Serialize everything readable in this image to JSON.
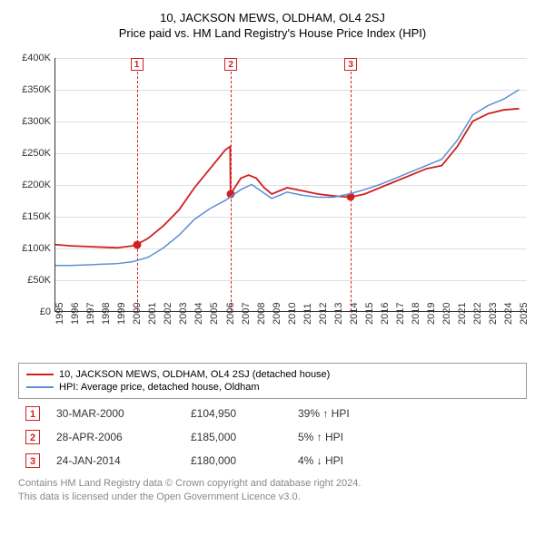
{
  "title": "10, JACKSON MEWS, OLDHAM, OL4 2SJ",
  "subtitle": "Price paid vs. HM Land Registry's House Price Index (HPI)",
  "chart": {
    "type": "line",
    "xlim": [
      1995,
      2025.5
    ],
    "ylim": [
      0,
      400000
    ],
    "ytick_step": 50000,
    "ytick_labels": [
      "£0",
      "£50K",
      "£100K",
      "£150K",
      "£200K",
      "£250K",
      "£300K",
      "£350K",
      "£400K"
    ],
    "xticks": [
      1995,
      1996,
      1997,
      1998,
      1999,
      2000,
      2001,
      2002,
      2003,
      2004,
      2005,
      2006,
      2007,
      2008,
      2009,
      2010,
      2011,
      2012,
      2013,
      2014,
      2015,
      2016,
      2017,
      2018,
      2019,
      2020,
      2021,
      2022,
      2023,
      2024,
      2025
    ],
    "background_color": "#ffffff",
    "grid_color": "#e0e0e0",
    "axis_color": "#333333",
    "label_fontsize": 11,
    "series": [
      {
        "name": "10, JACKSON MEWS, OLDHAM, OL4 2SJ (detached house)",
        "color": "#d02020",
        "width": 1.8,
        "points": [
          [
            1995,
            105000
          ],
          [
            1996,
            103000
          ],
          [
            1997,
            102000
          ],
          [
            1998,
            101000
          ],
          [
            1999,
            100000
          ],
          [
            2000,
            103000
          ],
          [
            2000.25,
            104950
          ],
          [
            2001,
            115000
          ],
          [
            2002,
            135000
          ],
          [
            2003,
            160000
          ],
          [
            2004,
            195000
          ],
          [
            2005,
            225000
          ],
          [
            2006,
            255000
          ],
          [
            2006.3,
            260000
          ],
          [
            2006.33,
            185000
          ],
          [
            2007,
            210000
          ],
          [
            2007.5,
            215000
          ],
          [
            2008,
            210000
          ],
          [
            2008.5,
            195000
          ],
          [
            2009,
            185000
          ],
          [
            2010,
            195000
          ],
          [
            2011,
            190000
          ],
          [
            2012,
            185000
          ],
          [
            2013,
            182000
          ],
          [
            2014,
            180000
          ],
          [
            2014.07,
            180000
          ],
          [
            2015,
            185000
          ],
          [
            2016,
            195000
          ],
          [
            2017,
            205000
          ],
          [
            2018,
            215000
          ],
          [
            2019,
            225000
          ],
          [
            2020,
            230000
          ],
          [
            2021,
            260000
          ],
          [
            2022,
            300000
          ],
          [
            2023,
            312000
          ],
          [
            2024,
            318000
          ],
          [
            2025,
            320000
          ]
        ]
      },
      {
        "name": "HPI: Average price, detached house, Oldham",
        "color": "#5b8fd6",
        "width": 1.5,
        "points": [
          [
            1995,
            72000
          ],
          [
            1996,
            72000
          ],
          [
            1997,
            73000
          ],
          [
            1998,
            74000
          ],
          [
            1999,
            75000
          ],
          [
            2000,
            78000
          ],
          [
            2001,
            85000
          ],
          [
            2002,
            100000
          ],
          [
            2003,
            120000
          ],
          [
            2004,
            145000
          ],
          [
            2005,
            162000
          ],
          [
            2006,
            175000
          ],
          [
            2007,
            192000
          ],
          [
            2007.7,
            200000
          ],
          [
            2008,
            195000
          ],
          [
            2009,
            178000
          ],
          [
            2010,
            188000
          ],
          [
            2011,
            183000
          ],
          [
            2012,
            180000
          ],
          [
            2013,
            180000
          ],
          [
            2014,
            185000
          ],
          [
            2015,
            192000
          ],
          [
            2016,
            200000
          ],
          [
            2017,
            210000
          ],
          [
            2018,
            220000
          ],
          [
            2019,
            230000
          ],
          [
            2020,
            240000
          ],
          [
            2021,
            270000
          ],
          [
            2022,
            310000
          ],
          [
            2023,
            325000
          ],
          [
            2024,
            335000
          ],
          [
            2025,
            350000
          ]
        ]
      }
    ],
    "markers": [
      {
        "n": "1",
        "x": 2000.25,
        "y": 104950
      },
      {
        "n": "2",
        "x": 2006.33,
        "y": 185000
      },
      {
        "n": "3",
        "x": 2014.07,
        "y": 180000
      }
    ]
  },
  "legend": [
    {
      "color": "#d02020",
      "label": "10, JACKSON MEWS, OLDHAM, OL4 2SJ (detached house)"
    },
    {
      "color": "#5b8fd6",
      "label": "HPI: Average price, detached house, Oldham"
    }
  ],
  "transactions": [
    {
      "n": "1",
      "date": "30-MAR-2000",
      "price": "£104,950",
      "diff": "39% ↑ HPI"
    },
    {
      "n": "2",
      "date": "28-APR-2006",
      "price": "£185,000",
      "diff": "5% ↑ HPI"
    },
    {
      "n": "3",
      "date": "24-JAN-2014",
      "price": "£180,000",
      "diff": "4% ↓ HPI"
    }
  ],
  "footer": {
    "line1": "Contains HM Land Registry data © Crown copyright and database right 2024.",
    "line2": "This data is licensed under the Open Government Licence v3.0."
  }
}
